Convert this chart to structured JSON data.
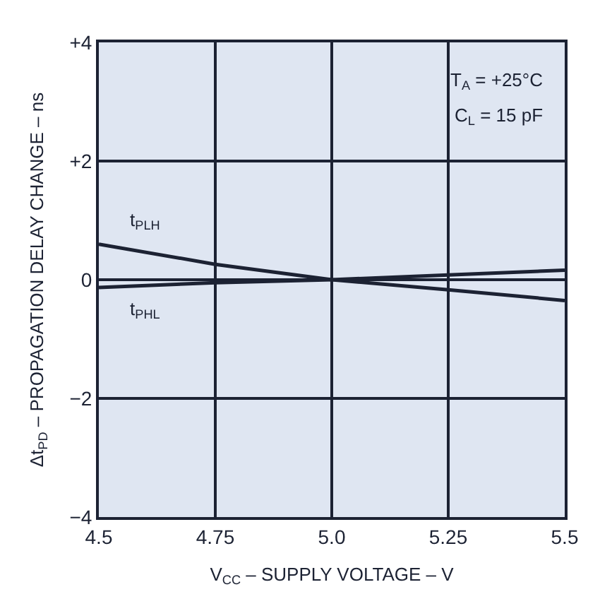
{
  "chart_data": {
    "type": "line",
    "xlabel": "V$_{CC}$ – SUPPLY VOLTAGE – V",
    "ylabel": "Δt$_{PD}$ – PROPAGATION DELAY CHANGE – ns",
    "annotations": [
      "T$_{A}$ = +25°C",
      "C$_{L}$ = 15 pF"
    ],
    "x": [
      4.5,
      4.75,
      5.0,
      5.25,
      5.5
    ],
    "series": [
      {
        "name": "t$_{PLH}$",
        "color": "#1c2233",
        "values": [
          0.6,
          0.26,
          0,
          -0.17,
          -0.35
        ]
      },
      {
        "name": "t$_{PHL}$",
        "color": "#1c2233",
        "values": [
          -0.13,
          -0.05,
          0,
          0.08,
          0.16
        ]
      }
    ],
    "xlim": [
      4.5,
      5.5
    ],
    "ylim": [
      -4,
      4
    ],
    "xticks": [
      4.5,
      4.75,
      {
        "value": 5.0,
        "label": "5.0"
      },
      5.25,
      5.5
    ],
    "yticks": [
      {
        "value": -4,
        "label": "−4"
      },
      {
        "value": -2,
        "label": "−2"
      },
      0,
      {
        "value": 2,
        "label": "+2"
      },
      {
        "value": 4,
        "label": "+4"
      }
    ],
    "grid": true,
    "legend": false,
    "marker": "none",
    "line_style": "solid"
  }
}
